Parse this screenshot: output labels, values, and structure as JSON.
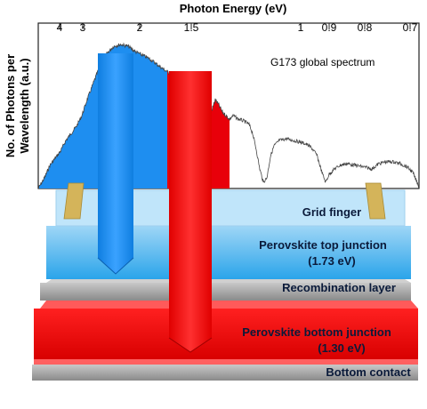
{
  "top_axis": {
    "title": "Photon Energy (eV)",
    "ticks": [
      "4",
      "3",
      "2",
      "1.5",
      "1",
      "0.9",
      "0.8",
      "0.7"
    ]
  },
  "y_axis": {
    "title_line1": "No. of Photons per",
    "title_line2": "Wavelength (a.u.)"
  },
  "spectrum": {
    "legend": "G173 global spectrum"
  },
  "layers": {
    "grid_finger": "Grid finger",
    "top_junction_line1": "Perovskite top junction",
    "top_junction_line2": "(1.73 eV)",
    "recombination": "Recombination layer",
    "bottom_junction_line1": "Perovskite bottom junction",
    "bottom_junction_line2": "(1.30 eV)",
    "bottom_contact": "Bottom contact"
  },
  "colors": {
    "blue": "#1e8ef0",
    "red": "#e8000a",
    "gold": "#d4b45a"
  }
}
